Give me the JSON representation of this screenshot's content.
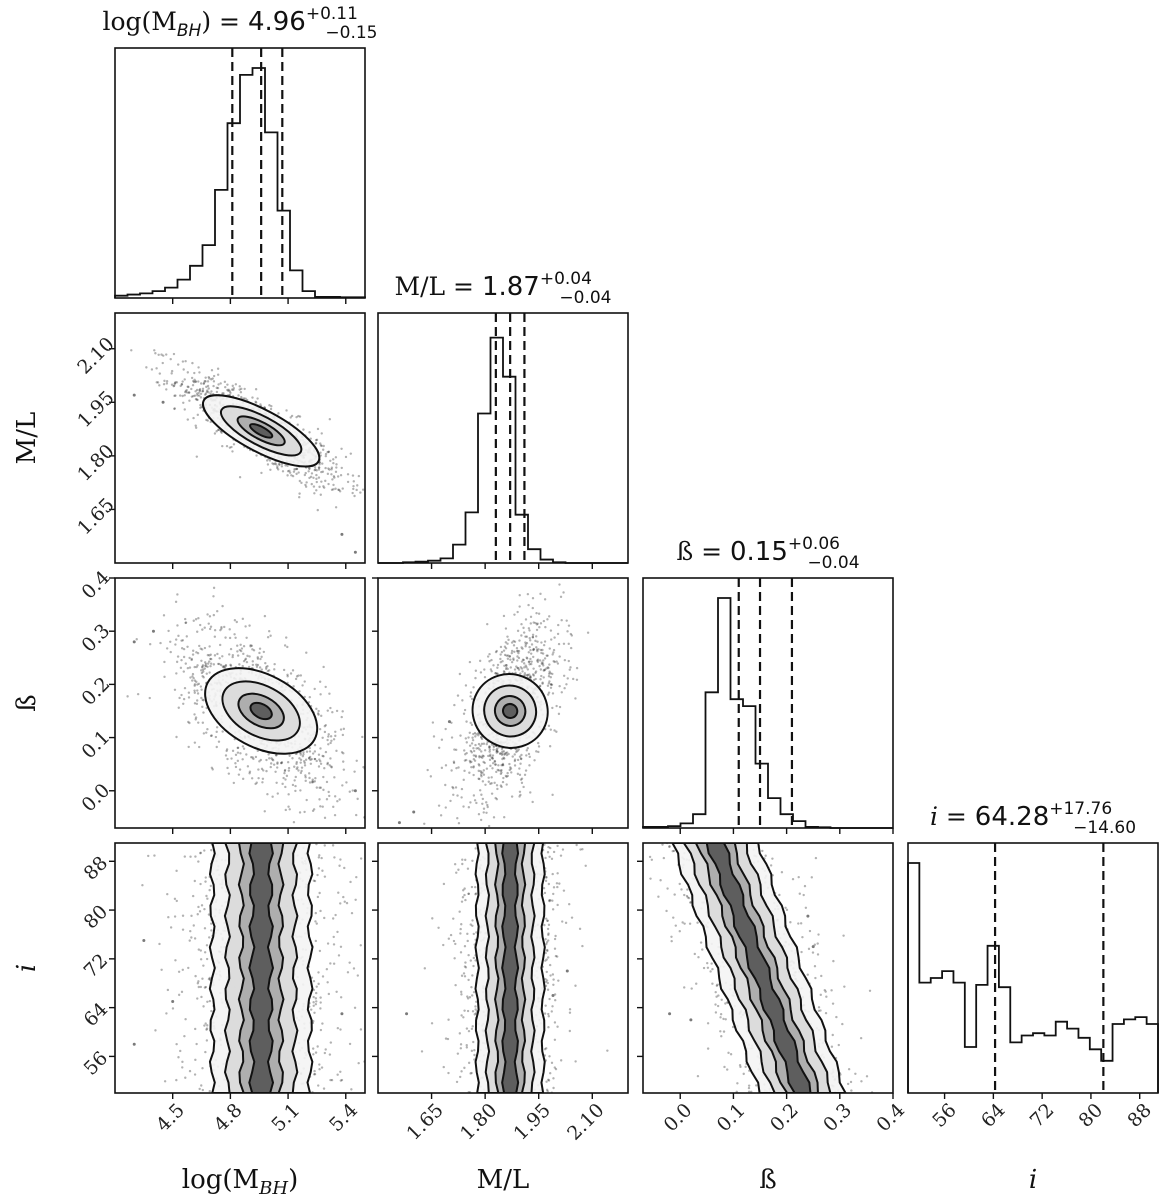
{
  "chart_data": {
    "type": "corner",
    "parameters": [
      {
        "key": "logM",
        "label": "log(M",
        "label_sub": "BH",
        "label_close": ")",
        "range": [
          4.2,
          5.5
        ],
        "ticks": [
          {
            "v": 4.5,
            "t": "4.5"
          },
          {
            "v": 4.8,
            "t": "4.8"
          },
          {
            "v": 5.1,
            "t": "5.1"
          },
          {
            "v": 5.4,
            "t": "5.4"
          }
        ],
        "title": {
          "pre": "log(M",
          "pre_sub": "BH",
          "pre_close": ")",
          "eq": " = ",
          "value": "4.96",
          "plus": "+0.11",
          "minus": "−0.15"
        },
        "quantiles": [
          4.81,
          4.96,
          5.07
        ],
        "hist": [
          0.01,
          0.015,
          0.02,
          0.03,
          0.045,
          0.08,
          0.14,
          0.23,
          0.47,
          0.76,
          0.97,
          1.0,
          0.72,
          0.38,
          0.12,
          0.03,
          0.005,
          0.005,
          0.003,
          0.003
        ]
      },
      {
        "key": "ML",
        "label": "M/L",
        "range": [
          1.5,
          2.2
        ],
        "ticks": [
          {
            "v": 1.65,
            "t": "1.65"
          },
          {
            "v": 1.8,
            "t": "1.80"
          },
          {
            "v": 1.95,
            "t": "1.95"
          },
          {
            "v": 2.1,
            "t": "2.10"
          }
        ],
        "title": {
          "pre": "M/L",
          "eq": " = ",
          "value": "1.87",
          "plus": "+0.04",
          "minus": "−0.04"
        },
        "quantiles": [
          1.83,
          1.87,
          1.91
        ],
        "hist": [
          0.0,
          0.0,
          0.003,
          0.006,
          0.01,
          0.02,
          0.08,
          0.22,
          0.65,
          0.98,
          0.81,
          0.21,
          0.06,
          0.015,
          0.003,
          0.0,
          0.0,
          0.0,
          0.0,
          0.0
        ]
      },
      {
        "key": "beta",
        "label": "ß",
        "range": [
          -0.07,
          0.4
        ],
        "ticks": [
          {
            "v": 0.0,
            "t": "0.0"
          },
          {
            "v": 0.1,
            "t": "0.1"
          },
          {
            "v": 0.2,
            "t": "0.2"
          },
          {
            "v": 0.3,
            "t": "0.3"
          },
          {
            "v": 0.4,
            "t": "0.4"
          }
        ],
        "title": {
          "pre": "ß",
          "eq": " = ",
          "value": "0.15",
          "plus": "+0.06",
          "minus": "−0.04"
        },
        "quantiles": [
          0.11,
          0.15,
          0.21
        ],
        "hist": [
          0.005,
          0.005,
          0.008,
          0.02,
          0.06,
          0.59,
          1.0,
          0.56,
          0.53,
          0.28,
          0.13,
          0.06,
          0.03,
          0.005,
          0.003,
          0.0,
          0.0,
          0.0,
          0.0,
          0.0
        ]
      },
      {
        "key": "inc",
        "label": "i",
        "italic": true,
        "range": [
          50,
          91
        ],
        "ticks": [
          {
            "v": 56,
            "t": "56"
          },
          {
            "v": 64,
            "t": "64"
          },
          {
            "v": 72,
            "t": "72"
          },
          {
            "v": 80,
            "t": "80"
          },
          {
            "v": 88,
            "t": "88"
          }
        ],
        "title": {
          "pre": "i",
          "italic": true,
          "eq": " = ",
          "value": "64.28",
          "plus": "+17.76",
          "minus": "−14.60"
        },
        "quantiles": [
          64.28,
          82.04
        ],
        "hist": [
          1.0,
          0.48,
          0.5,
          0.53,
          0.48,
          0.2,
          0.47,
          0.64,
          0.46,
          0.22,
          0.25,
          0.26,
          0.25,
          0.31,
          0.28,
          0.24,
          0.19,
          0.14,
          0.3,
          0.32,
          0.33,
          0.3
        ]
      }
    ],
    "pairs": [
      {
        "row": 1,
        "col": 0,
        "cx": 4.96,
        "cy": 1.87,
        "sx": 0.12,
        "sy": 0.045,
        "rho": -0.85,
        "tails": [
          [
            4.3,
            1.97
          ],
          [
            4.45,
            1.95
          ],
          [
            5.38,
            1.58
          ],
          [
            5.45,
            1.53
          ]
        ]
      },
      {
        "row": 2,
        "col": 0,
        "cx": 4.96,
        "cy": 0.15,
        "sx": 0.12,
        "sy": 0.045,
        "rho": -0.62,
        "tails": [
          [
            4.3,
            0.28
          ],
          [
            4.4,
            0.3
          ],
          [
            5.5,
            -0.05
          ],
          [
            5.45,
            0.0
          ]
        ]
      },
      {
        "row": 2,
        "col": 1,
        "cx": 1.87,
        "cy": 0.15,
        "sx": 0.04,
        "sy": 0.045,
        "rho": 0.55,
        "tails": [
          [
            1.6,
            -0.04
          ],
          [
            1.56,
            -0.06
          ],
          [
            1.7,
            0.13
          ]
        ]
      },
      {
        "row": 3,
        "col": 0,
        "cx": 4.96,
        "cy": 70,
        "sx": 0.11,
        "sy": 11,
        "rho": 0.0,
        "tails": [
          [
            4.35,
            75
          ],
          [
            4.5,
            65
          ],
          [
            5.38,
            63
          ],
          [
            4.3,
            58
          ]
        ]
      },
      {
        "row": 3,
        "col": 1,
        "cx": 1.87,
        "cy": 70,
        "sx": 0.04,
        "sy": 11,
        "rho": 0.0,
        "tails": [
          [
            1.58,
            63
          ],
          [
            1.99,
            66
          ],
          [
            2.03,
            70
          ]
        ]
      },
      {
        "row": 3,
        "col": 2,
        "cx": 0.15,
        "cy": 70,
        "sx": 0.035,
        "sy": 11,
        "rho": -0.75,
        "tails": [
          [
            -0.02,
            63
          ],
          [
            0.02,
            62
          ],
          [
            0.25,
            74
          ],
          [
            0.24,
            79
          ]
        ]
      }
    ]
  }
}
